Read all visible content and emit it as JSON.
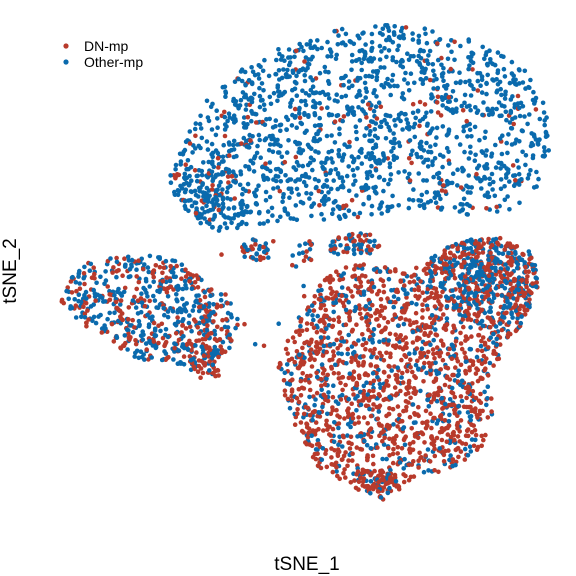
{
  "chart_data": {
    "type": "scatter",
    "title": "",
    "xlabel": "tSNE_1",
    "ylabel": "tSNE_2",
    "grid": false,
    "legend_placement": "top-left",
    "series": [
      {
        "name": "DN-mp",
        "color": "#b83a2b",
        "count_shown": "approx 2400"
      },
      {
        "name": "Other-mp",
        "color": "#0a6aad",
        "count_shown": "approx 3000"
      }
    ]
  }
}
